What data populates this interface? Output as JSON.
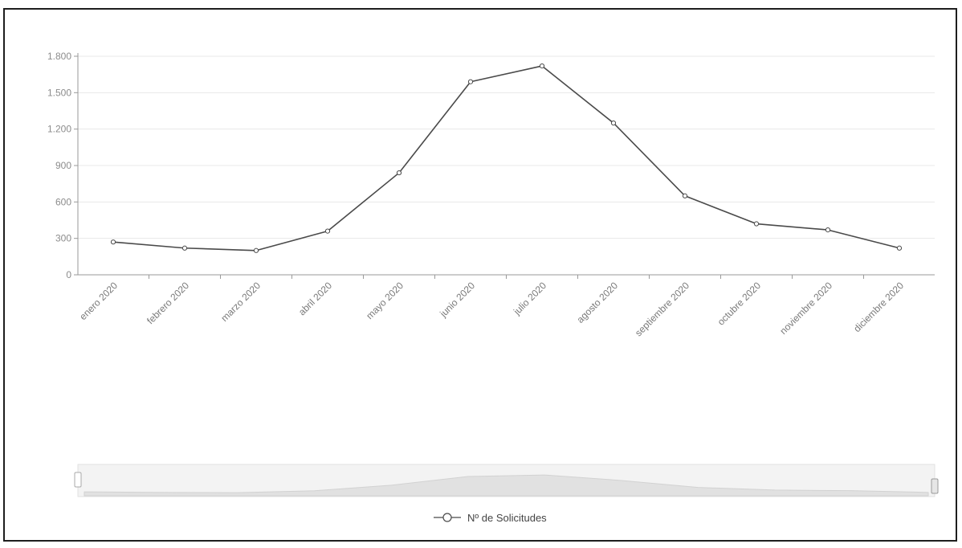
{
  "chart_data": {
    "type": "line",
    "categories": [
      "enero 2020",
      "febrero 2020",
      "marzo 2020",
      "abril 2020",
      "mayo 2020",
      "junio 2020",
      "julio 2020",
      "agosto 2020",
      "septiembre 2020",
      "octubre 2020",
      "noviembre 2020",
      "diciembre 2020"
    ],
    "series": [
      {
        "name": "Nº de Solicitudes",
        "values": [
          270,
          220,
          200,
          360,
          840,
          1590,
          1720,
          1250,
          650,
          420,
          370,
          220
        ]
      }
    ],
    "y_ticks": [
      {
        "value": 0,
        "label": "0"
      },
      {
        "value": 300,
        "label": "300"
      },
      {
        "value": 600,
        "label": "600"
      },
      {
        "value": 900,
        "label": "900"
      },
      {
        "value": 1200,
        "label": "1.200"
      },
      {
        "value": 1500,
        "label": "1.500"
      },
      {
        "value": 1800,
        "label": "1.800"
      }
    ],
    "ylim": [
      0,
      1800
    ],
    "grid": true,
    "legend": "bottom",
    "colors": {
      "line": "#4a4a4a",
      "marker_fill": "#ffffff",
      "grid": "#e8e8e8",
      "axis": "#9a9a9a"
    }
  },
  "range_slider": {
    "visible": true
  }
}
